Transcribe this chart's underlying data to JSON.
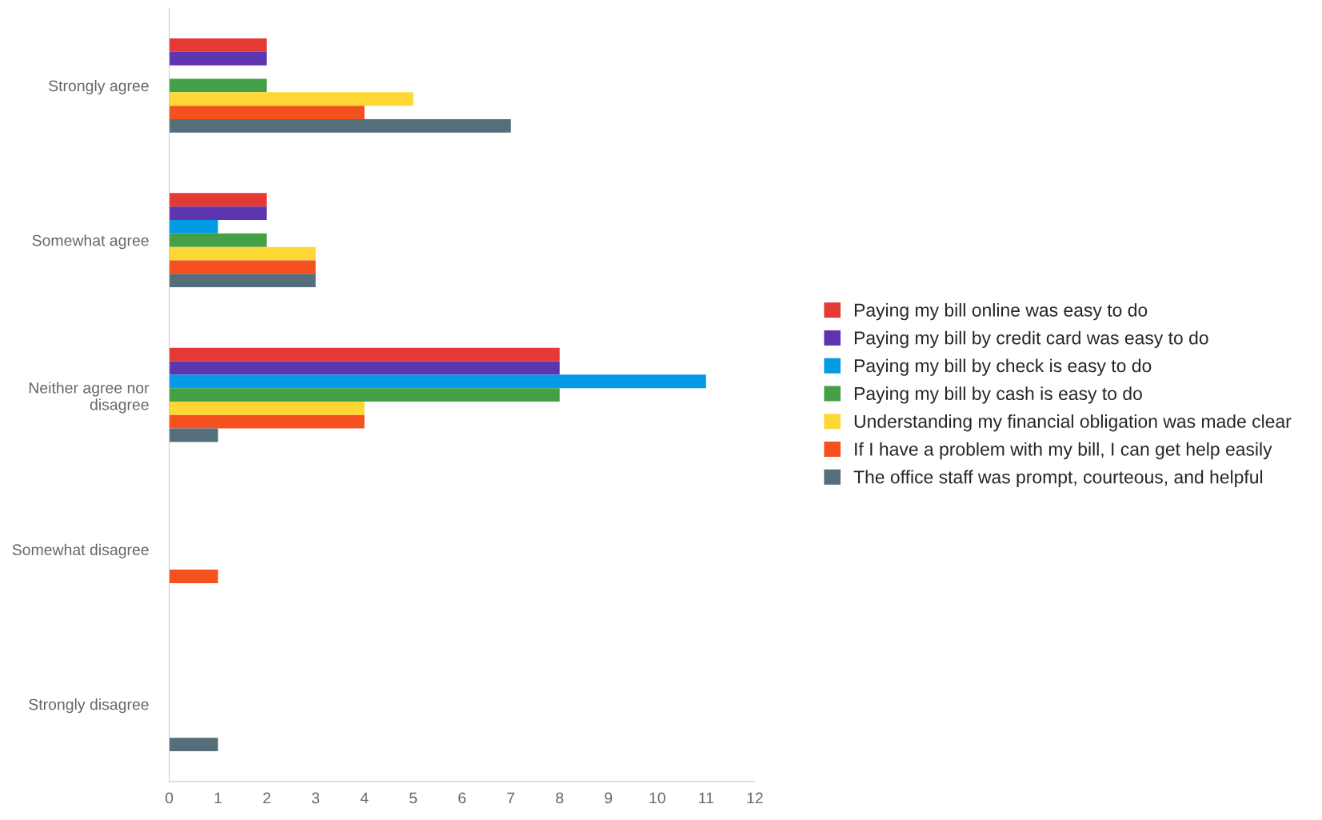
{
  "chart_data": {
    "type": "bar",
    "orientation": "horizontal",
    "categories": [
      "Strongly agree",
      "Somewhat agree",
      "Neither agree nor\ndisagree",
      "Somewhat disagree",
      "Strongly disagree"
    ],
    "series": [
      {
        "name": "Paying my bill online was easy to do",
        "color": "#e53935",
        "values": [
          2,
          2,
          8,
          0,
          0
        ]
      },
      {
        "name": "Paying my bill by credit card was easy to do",
        "color": "#5e35b1",
        "values": [
          2,
          2,
          8,
          0,
          0
        ]
      },
      {
        "name": "Paying my bill by check is easy to do",
        "color": "#039be5",
        "values": [
          0,
          1,
          11,
          0,
          0
        ]
      },
      {
        "name": "Paying my bill by cash is easy to do",
        "color": "#43a047",
        "values": [
          2,
          2,
          8,
          0,
          0
        ]
      },
      {
        "name": "Understanding my financial obligation was made clear",
        "color": "#fdd835",
        "values": [
          5,
          3,
          4,
          0,
          0
        ]
      },
      {
        "name": "If I have a problem with my bill, I can get help easily",
        "color": "#f4511e",
        "values": [
          4,
          3,
          4,
          1,
          0
        ]
      },
      {
        "name": "The office staff was prompt, courteous, and helpful",
        "color": "#546e7a",
        "values": [
          7,
          3,
          1,
          0,
          1
        ]
      }
    ],
    "xlim": [
      0,
      12
    ],
    "xticks": [
      0,
      1,
      2,
      3,
      4,
      5,
      6,
      7,
      8,
      9,
      10,
      11,
      12
    ],
    "grid": false,
    "legend": "right"
  }
}
